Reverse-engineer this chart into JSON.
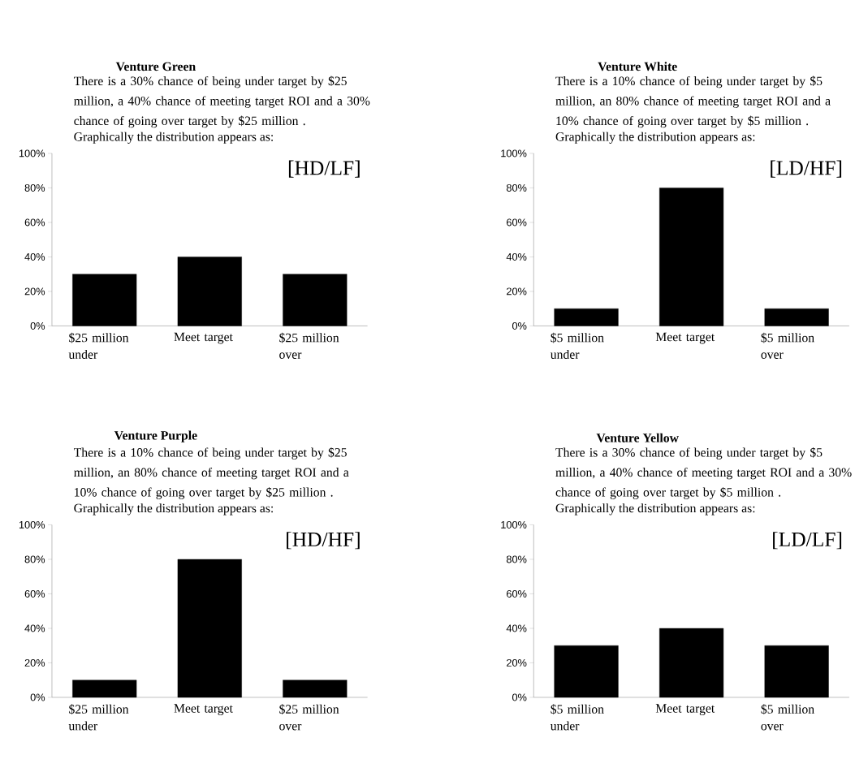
{
  "chart_data": [
    {
      "type": "bar",
      "title": "Venture Green",
      "subtitle": "There is a 30% chance of being under target by $25 million, a 40% chance of meeting target ROI and a 30% chance of going over target by $25 million .",
      "annotations": [
        "Graphically the distribution appears as:",
        "[HD/LF]"
      ],
      "categories": [
        "$25 million under",
        "Meet target",
        "$25 million over"
      ],
      "values": [
        30,
        40,
        30
      ],
      "color": "#000000",
      "ylim": [
        0,
        100
      ],
      "yticks": [
        {
          "value": 0,
          "label": "0%"
        },
        {
          "value": 20,
          "label": "20%"
        },
        {
          "value": 40,
          "label": "40%"
        },
        {
          "value": 60,
          "label": "60%"
        },
        {
          "value": 80,
          "label": "80%"
        },
        {
          "value": 100,
          "label": "100%"
        }
      ]
    },
    {
      "type": "bar",
      "title": "Venture White",
      "subtitle": "There is a 10% chance of being under target by $5 million, an 80% chance of meeting target ROI and a 10% chance of going over target by $5 million .",
      "annotations": [
        "Graphically the distribution appears as:",
        "[LD/HF]"
      ],
      "categories": [
        "$5 million under",
        "Meet target",
        "$5 million over"
      ],
      "values": [
        10,
        80,
        10
      ],
      "color": "#000000",
      "ylim": [
        0,
        100
      ],
      "yticks": [
        {
          "value": 0,
          "label": "0%"
        },
        {
          "value": 20,
          "label": "20%"
        },
        {
          "value": 40,
          "label": "40%"
        },
        {
          "value": 60,
          "label": "60%"
        },
        {
          "value": 80,
          "label": "80%"
        },
        {
          "value": 100,
          "label": "100%"
        }
      ]
    },
    {
      "type": "bar",
      "title": "Venture Purple",
      "subtitle": "There is a 10% chance of being under target by $25 million, an 80% chance of meeting target ROI and a 10% chance of going over target by $25 million .",
      "annotations": [
        "Graphically the distribution appears as:",
        "[HD/HF]"
      ],
      "categories": [
        "$25 million under",
        "Meet target",
        "$25 million over"
      ],
      "values": [
        10,
        80,
        10
      ],
      "color": "#000000",
      "ylim": [
        0,
        100
      ],
      "yticks": [
        {
          "value": 0,
          "label": "0%"
        },
        {
          "value": 20,
          "label": "20%"
        },
        {
          "value": 40,
          "label": "40%"
        },
        {
          "value": 60,
          "label": "60%"
        },
        {
          "value": 80,
          "label": "80%"
        },
        {
          "value": 100,
          "label": "100%"
        }
      ]
    },
    {
      "type": "bar",
      "title": "Venture Yellow",
      "subtitle": "There is a 30% chance of being under target by $5 million, a 40% chance of meeting target ROI and a 30% chance of going over target by $5 million .",
      "annotations": [
        "Graphically the distribution appears as:",
        "[LD/LF]"
      ],
      "categories": [
        "$5 million under",
        "Meet target",
        "$5 million over"
      ],
      "values": [
        30,
        40,
        30
      ],
      "color": "#000000",
      "ylim": [
        0,
        100
      ],
      "yticks": [
        {
          "value": 0,
          "label": "0%"
        },
        {
          "value": 20,
          "label": "20%"
        },
        {
          "value": 40,
          "label": "40%"
        },
        {
          "value": 60,
          "label": "60%"
        },
        {
          "value": 80,
          "label": "80%"
        },
        {
          "value": 100,
          "label": "100%"
        }
      ]
    }
  ]
}
